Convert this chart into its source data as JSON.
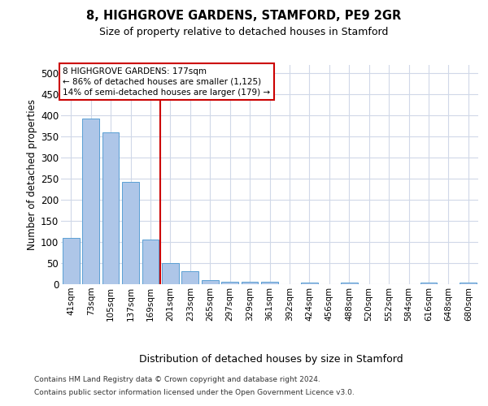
{
  "title": "8, HIGHGROVE GARDENS, STAMFORD, PE9 2GR",
  "subtitle": "Size of property relative to detached houses in Stamford",
  "xlabel": "Distribution of detached houses by size in Stamford",
  "ylabel": "Number of detached properties",
  "categories": [
    "41sqm",
    "73sqm",
    "105sqm",
    "137sqm",
    "169sqm",
    "201sqm",
    "233sqm",
    "265sqm",
    "297sqm",
    "329sqm",
    "361sqm",
    "392sqm",
    "424sqm",
    "456sqm",
    "488sqm",
    "520sqm",
    "552sqm",
    "584sqm",
    "616sqm",
    "648sqm",
    "680sqm"
  ],
  "values": [
    110,
    393,
    360,
    243,
    105,
    50,
    30,
    9,
    5,
    5,
    5,
    0,
    4,
    0,
    3,
    0,
    0,
    0,
    3,
    0,
    3
  ],
  "bar_color": "#aec6e8",
  "bar_edge_color": "#5a9fd4",
  "grid_color": "#d0d8e8",
  "background_color": "#ffffff",
  "annotation_text": "8 HIGHGROVE GARDENS: 177sqm\n← 86% of detached houses are smaller (1,125)\n14% of semi-detached houses are larger (179) →",
  "vline_color": "#cc0000",
  "annotation_box_edge": "#cc0000",
  "ylim_max": 520,
  "yticks": [
    0,
    50,
    100,
    150,
    200,
    250,
    300,
    350,
    400,
    450,
    500
  ],
  "footer_line1": "Contains HM Land Registry data © Crown copyright and database right 2024.",
  "footer_line2": "Contains public sector information licensed under the Open Government Licence v3.0."
}
